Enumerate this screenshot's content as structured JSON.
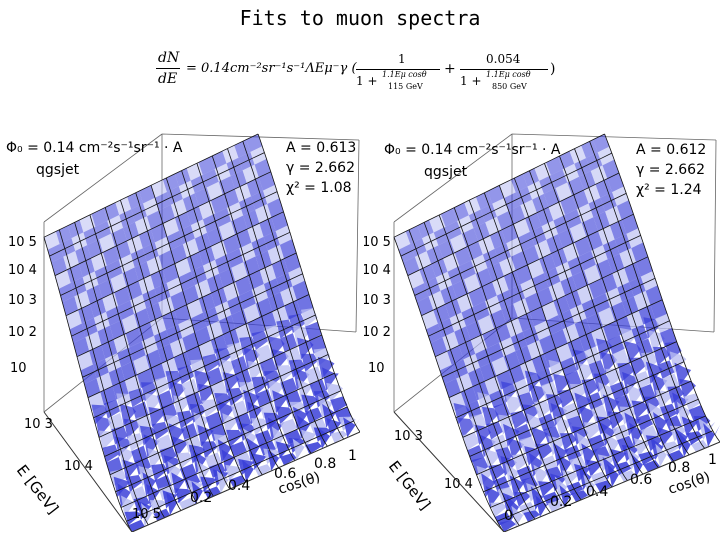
{
  "title": "Fits to muon spectra",
  "formula": {
    "lhs_num": "dN",
    "lhs_den": "dE",
    "coef": "= 0.14cm⁻²sr⁻¹s⁻¹ΛEμ⁻γ (",
    "t1_num": "1",
    "t1_den_a": "1 +",
    "t1_den_b": "1.1Eμ cosθ",
    "t1_den_c": "115 GeV",
    "plus": "+",
    "t2_num": "0.054",
    "t2_den_a": "1 +",
    "t2_den_b": "1.1Eμ cosθ",
    "t2_den_c": "850 GeV",
    "close": ")"
  },
  "chart_data": [
    {
      "type": "surface",
      "subtitle": "Φ₀ = 0.14 cm⁻²s⁻¹sr⁻¹ · A",
      "model": "qgsjet",
      "fit": [
        "A = 0.613",
        "γ = 2.662",
        "χ² = 1.08"
      ],
      "xlabel": "E [GeV]",
      "ylabel": "cos(θ)",
      "z_ticks": [
        "10 5",
        "10 4",
        "10 3",
        "10 2",
        "10"
      ],
      "e_ticks": [
        "10 3",
        "10 4",
        "10 5"
      ],
      "cos_ticks": [
        "0.2",
        "0.4",
        "0.6",
        "0.8",
        "1"
      ],
      "cos_range": [
        0,
        1
      ],
      "z_range_log10": [
        1,
        5
      ],
      "colors": {
        "surface": "#3a3fd8",
        "surface_light": "#b9bdf2",
        "grid": "#111111"
      }
    },
    {
      "type": "surface",
      "subtitle": "Φ₀ = 0.14 cm⁻²s⁻¹sr⁻¹ · A",
      "model": "qgsjet",
      "fit": [
        "A = 0.612",
        "γ = 2.662",
        "χ² = 1.24"
      ],
      "xlabel": "E [GeV]",
      "ylabel": "cos(θ)",
      "z_ticks": [
        "10 5",
        "10 4",
        "10 3",
        "10 2",
        "10"
      ],
      "e_ticks": [
        "10 3",
        "10 4"
      ],
      "cos_ticks": [
        "0",
        "0.2",
        "0.4",
        "0.6",
        "0.8",
        "1"
      ],
      "cos_range": [
        0,
        1
      ],
      "z_range_log10": [
        1,
        5
      ],
      "colors": {
        "surface": "#3a3fd8",
        "surface_light": "#b9bdf2",
        "grid": "#111111"
      }
    }
  ]
}
